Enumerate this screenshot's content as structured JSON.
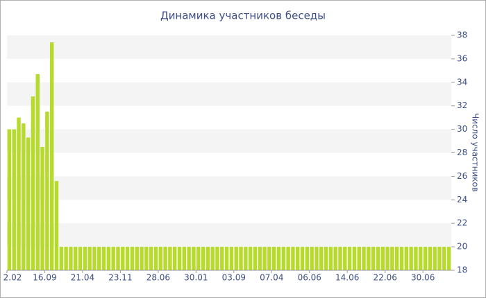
{
  "chart_data": {
    "type": "bar",
    "title": "Динамика участников беседы",
    "y_label": "Число участников",
    "categories": [
      "2.02",
      null,
      null,
      null,
      null,
      null,
      null,
      null,
      "16.09",
      null,
      null,
      null,
      null,
      null,
      null,
      null,
      "21.04",
      null,
      null,
      null,
      null,
      null,
      null,
      null,
      "23.11",
      null,
      null,
      null,
      null,
      null,
      null,
      null,
      "28.06",
      null,
      null,
      null,
      null,
      null,
      null,
      null,
      "30.01",
      null,
      null,
      null,
      null,
      null,
      null,
      null,
      "03.09",
      null,
      null,
      null,
      null,
      null,
      null,
      null,
      "07.04",
      null,
      null,
      null,
      null,
      null,
      null,
      null,
      "06.06",
      null,
      null,
      null,
      null,
      null,
      null,
      null,
      "14.06",
      null,
      null,
      null,
      null,
      null,
      null,
      null,
      "22.06",
      null,
      null,
      null,
      null,
      null,
      null,
      null,
      "30.06",
      null,
      null,
      null,
      null,
      null
    ],
    "values": [
      30,
      30,
      31,
      30.5,
      29.3,
      32.8,
      34.7,
      28.5,
      31.5,
      37.4,
      25.6,
      20,
      20,
      20,
      20,
      20,
      20,
      20,
      20,
      20,
      20,
      20,
      20,
      20,
      20,
      20,
      20,
      20,
      20,
      20,
      20,
      20,
      20,
      20,
      20,
      20,
      20,
      20,
      20,
      20,
      20,
      20,
      20,
      20,
      20,
      20,
      20,
      20,
      20,
      20,
      20,
      20,
      20,
      20,
      20,
      20,
      20,
      20,
      20,
      20,
      20,
      20,
      20,
      20,
      20,
      20,
      20,
      20,
      20,
      20,
      20,
      20,
      20,
      20,
      20,
      20,
      20,
      20,
      20,
      20,
      20,
      20,
      20,
      20,
      20,
      20,
      20,
      20,
      20,
      20,
      20,
      20,
      20,
      20
    ],
    "color": "#b6db2c",
    "ylim": [
      18,
      38
    ],
    "yticks": [
      18,
      20,
      22,
      24,
      26,
      28,
      30,
      32,
      34,
      36,
      38
    ],
    "grid_bands": true
  }
}
